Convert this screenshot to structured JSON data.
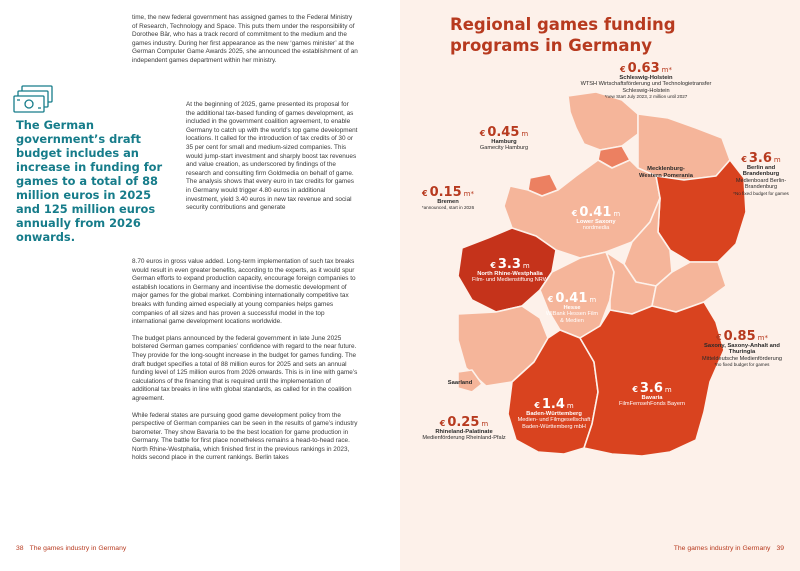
{
  "left": {
    "col_a": "time, the new federal government has assigned games to the Federal Ministry of Research, Technology and Space. This puts them under the responsibility of Dorothee Bär, who has a track record of commitment to the medium and the games industry. During her first appearance as the new ‘games minister’ at the German Computer Game Awards 2025, she announced the establishment of an independent games department within her ministry.",
    "col_b": "At the beginning of 2025, game presented its proposal for the additional tax-based funding of games development, as included in the government coalition agreement, to enable Germany to catch up with the world’s top game development locations. It called for the introduction of tax credits of 30 or 35 per cent for small and medium-sized companies. This would jump-start investment and sharply boost tax revenues and value creation, as underscored by findings of the research and consulting firm Goldmedia on behalf of game. The analysis shows that every euro in tax credits for games in Germany would trigger 4.80 euros in additional investment, yield 3.40 euros in new tax revenue and social security contributions and generate",
    "col_c_1": "8.70 euros in gross value added. Long-term implementation of such tax breaks would result in even greater benefits, according to the experts, as it would spur German efforts to expand production capacity, encourage foreign companies to establish locations in Germany and incentivise the domestic development of major games for the global market. Combining internationally competitive tax breaks with funding aimed especially at young companies helps games companies of all sizes and has proven a successful model in the top international game development locations worldwide.",
    "col_c_2": "The budget plans announced by the federal government in late June 2025 bolstered German games companies’ confidence with regard to the near future. They provide for the long-sought increase in the budget for games funding. The draft budget specifies a total of 88 million euros for 2025 and sets an annual funding level of 125 million euros from 2026 onwards. This is in line with game’s calculations of the financing that is required until the implementation of additional tax breaks in line with global standards, as called for in the coalition agreement.",
    "col_c_3": "While federal states are pursuing good game development policy from the perspective of German companies can be seen in the results of game’s industry barometer. They show Bavaria to be the best location for game production in Germany. The battle for first place nonetheless remains a head-to-head race. North Rhine-Westphalia, which finished first in the previous rankings in 2023, holds second place in the current rankings. Berlin takes",
    "pullquote": "The German government’s draft budget includes an increase in funding for games to a total of 88 million euros in 2025 and 125 million euros annually from 2026 onwards.",
    "footer_num": "38",
    "footer_text": "The games industry in Germany"
  },
  "right": {
    "title": "Regional games funding programs in Germany",
    "footer_text": "The games industry in Germany",
    "footer_num": "39"
  },
  "regions": [
    {
      "id": "sh",
      "amount": "0.63",
      "unit": "m",
      "mark": "*",
      "state": "Schleswig-Holstein",
      "program": "WTSH Wirtschaftsförderung und Technologietransfer Schleswig-Holstein",
      "note": "*new Start July 2023, 2 million until 2027"
    },
    {
      "id": "hh",
      "amount": "0.45",
      "unit": "m",
      "mark": "",
      "state": "Hamburg",
      "program": "Gamecity Hamburg",
      "note": ""
    },
    {
      "id": "hb",
      "amount": "0.15",
      "unit": "m",
      "mark": "*",
      "state": "Bremen",
      "program": "",
      "note": "*announced, start in 2026"
    },
    {
      "id": "mv",
      "amount": "",
      "unit": "",
      "mark": "",
      "state": "Mecklenburg-Western Pomerania",
      "program": "",
      "note": ""
    },
    {
      "id": "bb",
      "amount": "3.6",
      "unit": "m",
      "mark": "",
      "state": "Berlin and Brandenburg",
      "program": "Medienboard Berlin-Brandenburg",
      "note": "*No fixed budget for games"
    },
    {
      "id": "ni",
      "amount": "0.41",
      "unit": "m",
      "mark": "",
      "state": "Lower Saxony",
      "program": "nordmedia",
      "note": ""
    },
    {
      "id": "nw",
      "amount": "3.3",
      "unit": "m",
      "mark": "",
      "state": "North Rhine-Westphalia",
      "program": "Film- und Medienstiftung NRW",
      "note": ""
    },
    {
      "id": "he",
      "amount": "0.41",
      "unit": "m",
      "mark": "",
      "state": "Hesse",
      "program": "WIBank Hessen Film & Medien",
      "note": ""
    },
    {
      "id": "st",
      "amount": "0.85",
      "unit": "m",
      "mark": "*",
      "state": "Saxony, Saxony-Anhalt and Thuringia",
      "program": "Mitteldeutsche Medienförderung",
      "note": "*no fixed budget for games"
    },
    {
      "id": "sl",
      "amount": "",
      "unit": "",
      "mark": "",
      "state": "Saarland",
      "program": "",
      "note": ""
    },
    {
      "id": "rp",
      "amount": "0.25",
      "unit": "m",
      "mark": "",
      "state": "Rhineland-Palatinate",
      "program": "Medienförderung Rheinland-Pfalz",
      "note": ""
    },
    {
      "id": "bw",
      "amount": "1.4",
      "unit": "m",
      "mark": "",
      "state": "Baden-Württemberg",
      "program": "Medien- und Filmgesellschaft Baden-Württemberg mbH",
      "note": ""
    },
    {
      "id": "by",
      "amount": "3.6",
      "unit": "m",
      "mark": "",
      "state": "Bavaria",
      "program": "FilmFernsehFonds Bayern",
      "note": ""
    }
  ],
  "currency": "€",
  "colors": {
    "accent": "#b73a1f",
    "teal": "#167c8a",
    "bg_right": "#fdf1ea",
    "map_light": "#f5b59a",
    "map_mid": "#ec8061",
    "map_dark": "#d9431f",
    "map_darkest": "#c5331b"
  },
  "icons": [
    "money-stack-icon"
  ]
}
